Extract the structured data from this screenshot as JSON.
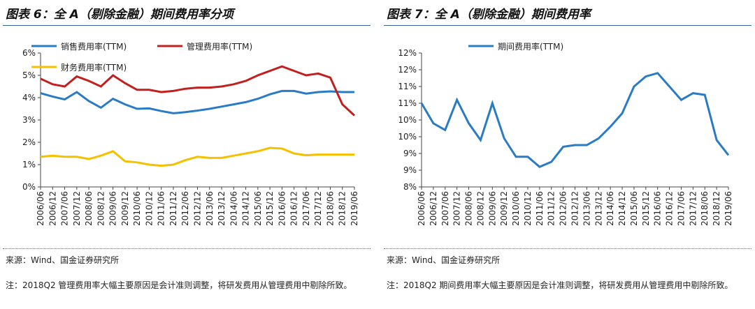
{
  "chart_data": [
    {
      "type": "line",
      "title": "图表 6：全 A（剔除金融）期间费用率分项",
      "categories": [
        "2006/06",
        "2006/12",
        "2007/06",
        "2007/12",
        "2008/06",
        "2008/12",
        "2009/06",
        "2009/12",
        "2010/06",
        "2010/12",
        "2011/06",
        "2011/12",
        "2012/06",
        "2012/12",
        "2013/06",
        "2013/12",
        "2014/06",
        "2014/12",
        "2015/06",
        "2015/12",
        "2016/06",
        "2016/12",
        "2017/06",
        "2017/12",
        "2018/06",
        "2018/12",
        "2019/06"
      ],
      "series": [
        {
          "name": "销售费用率(TTM)",
          "color": "#2a7bc6",
          "values": [
            4.2,
            4.05,
            3.92,
            4.25,
            3.85,
            3.55,
            3.95,
            3.7,
            3.5,
            3.52,
            3.4,
            3.3,
            3.35,
            3.42,
            3.5,
            3.6,
            3.7,
            3.8,
            3.95,
            4.15,
            4.3,
            4.3,
            4.18,
            4.25,
            4.28,
            4.25,
            4.25
          ]
        },
        {
          "name": "管理费用率(TTM)",
          "color": "#c0201e",
          "values": [
            4.85,
            4.6,
            4.5,
            4.95,
            4.75,
            4.5,
            5.0,
            4.65,
            4.35,
            4.35,
            4.25,
            4.3,
            4.4,
            4.45,
            4.45,
            4.5,
            4.6,
            4.75,
            5.0,
            5.2,
            5.4,
            5.2,
            5.0,
            5.08,
            4.9,
            3.7,
            3.2
          ]
        },
        {
          "name": "财务费用率(TTM)",
          "color": "#f5c000",
          "values": [
            1.35,
            1.4,
            1.35,
            1.35,
            1.25,
            1.4,
            1.6,
            1.15,
            1.1,
            1.0,
            0.95,
            1.0,
            1.2,
            1.35,
            1.3,
            1.3,
            1.4,
            1.5,
            1.6,
            1.75,
            1.72,
            1.5,
            1.42,
            1.45,
            1.45,
            1.45,
            1.45
          ]
        }
      ],
      "ylim": [
        0,
        6
      ],
      "yticks": [
        {
          "value": 0,
          "label": "0%"
        },
        {
          "value": 1,
          "label": "1%"
        },
        {
          "value": 2,
          "label": "2%"
        },
        {
          "value": 3,
          "label": "3%"
        },
        {
          "value": 4,
          "label": "4%"
        },
        {
          "value": 5,
          "label": "5%"
        },
        {
          "value": 6,
          "label": "6%"
        }
      ],
      "source": "来源：Wind、国金证券研究所",
      "note": "注：2018Q2 管理费用率大幅主要原因是会计准则调整，将研发费用从管理费用中剔除所致。"
    },
    {
      "type": "line",
      "title": "图表 7：全 A（剔除金融）期间费用率",
      "categories": [
        "2006/06",
        "2006/12",
        "2007/06",
        "2007/12",
        "2008/06",
        "2008/12",
        "2009/06",
        "2009/12",
        "2010/06",
        "2010/12",
        "2011/06",
        "2011/12",
        "2012/06",
        "2012/12",
        "2013/06",
        "2013/12",
        "2014/06",
        "2014/12",
        "2015/06",
        "2015/12",
        "2016/06",
        "2016/12",
        "2017/06",
        "2017/12",
        "2018/06",
        "2018/12",
        "2019/06"
      ],
      "series": [
        {
          "name": "期间费用率(TTM)",
          "color": "#2a7bc6",
          "values": [
            10.5,
            9.9,
            9.7,
            10.6,
            9.9,
            9.4,
            10.5,
            9.45,
            8.9,
            8.9,
            8.6,
            8.75,
            9.2,
            9.25,
            9.25,
            9.45,
            9.8,
            10.2,
            11.0,
            11.3,
            11.4,
            11.0,
            10.6,
            10.8,
            10.75,
            9.4,
            8.95
          ]
        }
      ],
      "ylim": [
        8,
        12
      ],
      "yticks": [
        {
          "value": 8,
          "label": "8%"
        },
        {
          "value": 8.5,
          "label": "9%"
        },
        {
          "value": 9,
          "label": "9%"
        },
        {
          "value": 9.5,
          "label": "10%"
        },
        {
          "value": 10,
          "label": "10%"
        },
        {
          "value": 10.5,
          "label": "11%"
        },
        {
          "value": 11,
          "label": "11%"
        },
        {
          "value": 11.5,
          "label": "12%"
        },
        {
          "value": 12,
          "label": "12%"
        }
      ],
      "source": "来源：Wind、国金证券研究所",
      "note": "注：2018Q2 期间费用率大幅主要原因是会计准则调整，将研发费用从管理费用中剔除所致。"
    }
  ]
}
